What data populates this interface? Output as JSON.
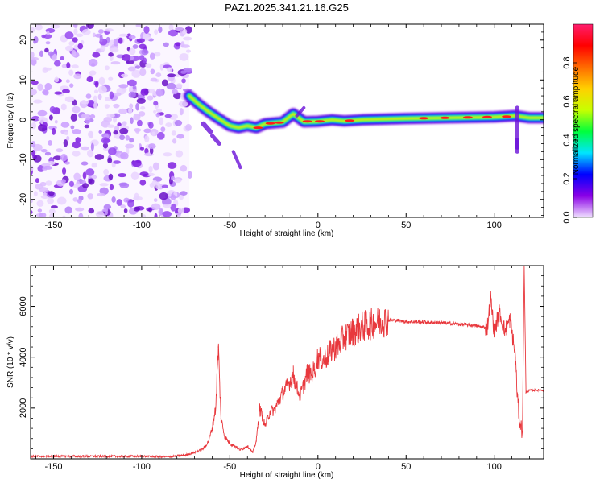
{
  "chart_data": [
    {
      "type": "heatmap",
      "title": "PAZ1.2025.341.21.16.G25",
      "xlabel": "Height of straight line (km)",
      "ylabel": "Frequency (Hz)",
      "xlim": [
        -163,
        128
      ],
      "ylim": [
        -24.5,
        24
      ],
      "xticks": [
        -150,
        -100,
        -50,
        0,
        50,
        100
      ],
      "yticks": [
        -20,
        -10,
        0,
        10,
        20
      ],
      "colorbar": {
        "label": "Normalized spectral amplitude",
        "range": [
          0,
          1
        ],
        "ticks": [
          0.0,
          0.2,
          0.4,
          0.6,
          0.8
        ],
        "colormap": [
          "#f0e0ff",
          "#8a00e6",
          "#0000ff",
          "#00e5ff",
          "#00ff3c",
          "#c8ff00",
          "#ffd000",
          "#ff6a00",
          "#ff0000",
          "#ff1e6e"
        ]
      },
      "noise_region_km": [
        -163,
        -73
      ],
      "ridge": [
        {
          "x": -73,
          "f": 6
        },
        {
          "x": -68,
          "f": 4
        },
        {
          "x": -62,
          "f": 2
        },
        {
          "x": -57,
          "f": 0.5
        },
        {
          "x": -50,
          "f": -1.5
        },
        {
          "x": -45,
          "f": -2
        },
        {
          "x": -40,
          "f": -1.5
        },
        {
          "x": -35,
          "f": -2
        },
        {
          "x": -30,
          "f": -1
        },
        {
          "x": -25,
          "f": -0.8
        },
        {
          "x": -20,
          "f": -0.6
        },
        {
          "x": -14,
          "f": 1.5
        },
        {
          "x": -8,
          "f": -0.5
        },
        {
          "x": 0,
          "f": -0.4
        },
        {
          "x": 8,
          "f": 0
        },
        {
          "x": 15,
          "f": -0.3
        },
        {
          "x": 25,
          "f": 0
        },
        {
          "x": 50,
          "f": 0.3
        },
        {
          "x": 75,
          "f": 0.5
        },
        {
          "x": 100,
          "f": 0.7
        },
        {
          "x": 112,
          "f": 1
        },
        {
          "x": 120,
          "f": 0.5
        },
        {
          "x": 128,
          "f": 0.5
        }
      ]
    },
    {
      "type": "line",
      "xlabel": "Height of straight line (km)",
      "ylabel": "SNR (10 * v/v)",
      "xlim": [
        -163,
        128
      ],
      "ylim": [
        0,
        7600
      ],
      "xticks": [
        -150,
        -100,
        -50,
        0,
        50,
        100
      ],
      "yticks": [
        2000,
        4000,
        6000
      ],
      "series": [
        {
          "name": "SNR",
          "color": "#e8383d",
          "x": [
            -163,
            -140,
            -120,
            -100,
            -85,
            -75,
            -70,
            -65,
            -62,
            -60,
            -58,
            -56.5,
            -55,
            -53,
            -50,
            -47,
            -44,
            -40,
            -37,
            -35,
            -33,
            -30,
            -27,
            -25,
            -22,
            -20,
            -17,
            -14,
            -12,
            -10,
            -8,
            -6,
            -4,
            -2,
            0,
            3,
            5,
            8,
            12,
            15,
            20,
            25,
            30,
            35,
            40,
            45,
            50,
            60,
            70,
            80,
            88,
            92,
            96,
            98,
            100,
            103,
            106,
            109,
            111,
            112,
            113,
            114,
            115,
            116,
            117,
            118,
            119,
            120,
            124,
            128
          ],
          "y": [
            100,
            100,
            100,
            100,
            80,
            150,
            250,
            400,
            700,
            1200,
            2000,
            4400,
            1600,
            900,
            600,
            500,
            350,
            500,
            250,
            700,
            2000,
            1300,
            1900,
            1900,
            2300,
            2600,
            2900,
            3300,
            2800,
            2500,
            2900,
            3400,
            3300,
            3500,
            4000,
            3900,
            4000,
            4300,
            4500,
            4800,
            5000,
            5200,
            5300,
            5400,
            5450,
            5450,
            5400,
            5380,
            5350,
            5300,
            5250,
            5200,
            5150,
            6300,
            5000,
            5800,
            5000,
            5500,
            4500,
            4000,
            2600,
            1700,
            1300,
            1100,
            7600,
            2600,
            2650,
            2700,
            2700,
            2700
          ]
        }
      ]
    }
  ]
}
